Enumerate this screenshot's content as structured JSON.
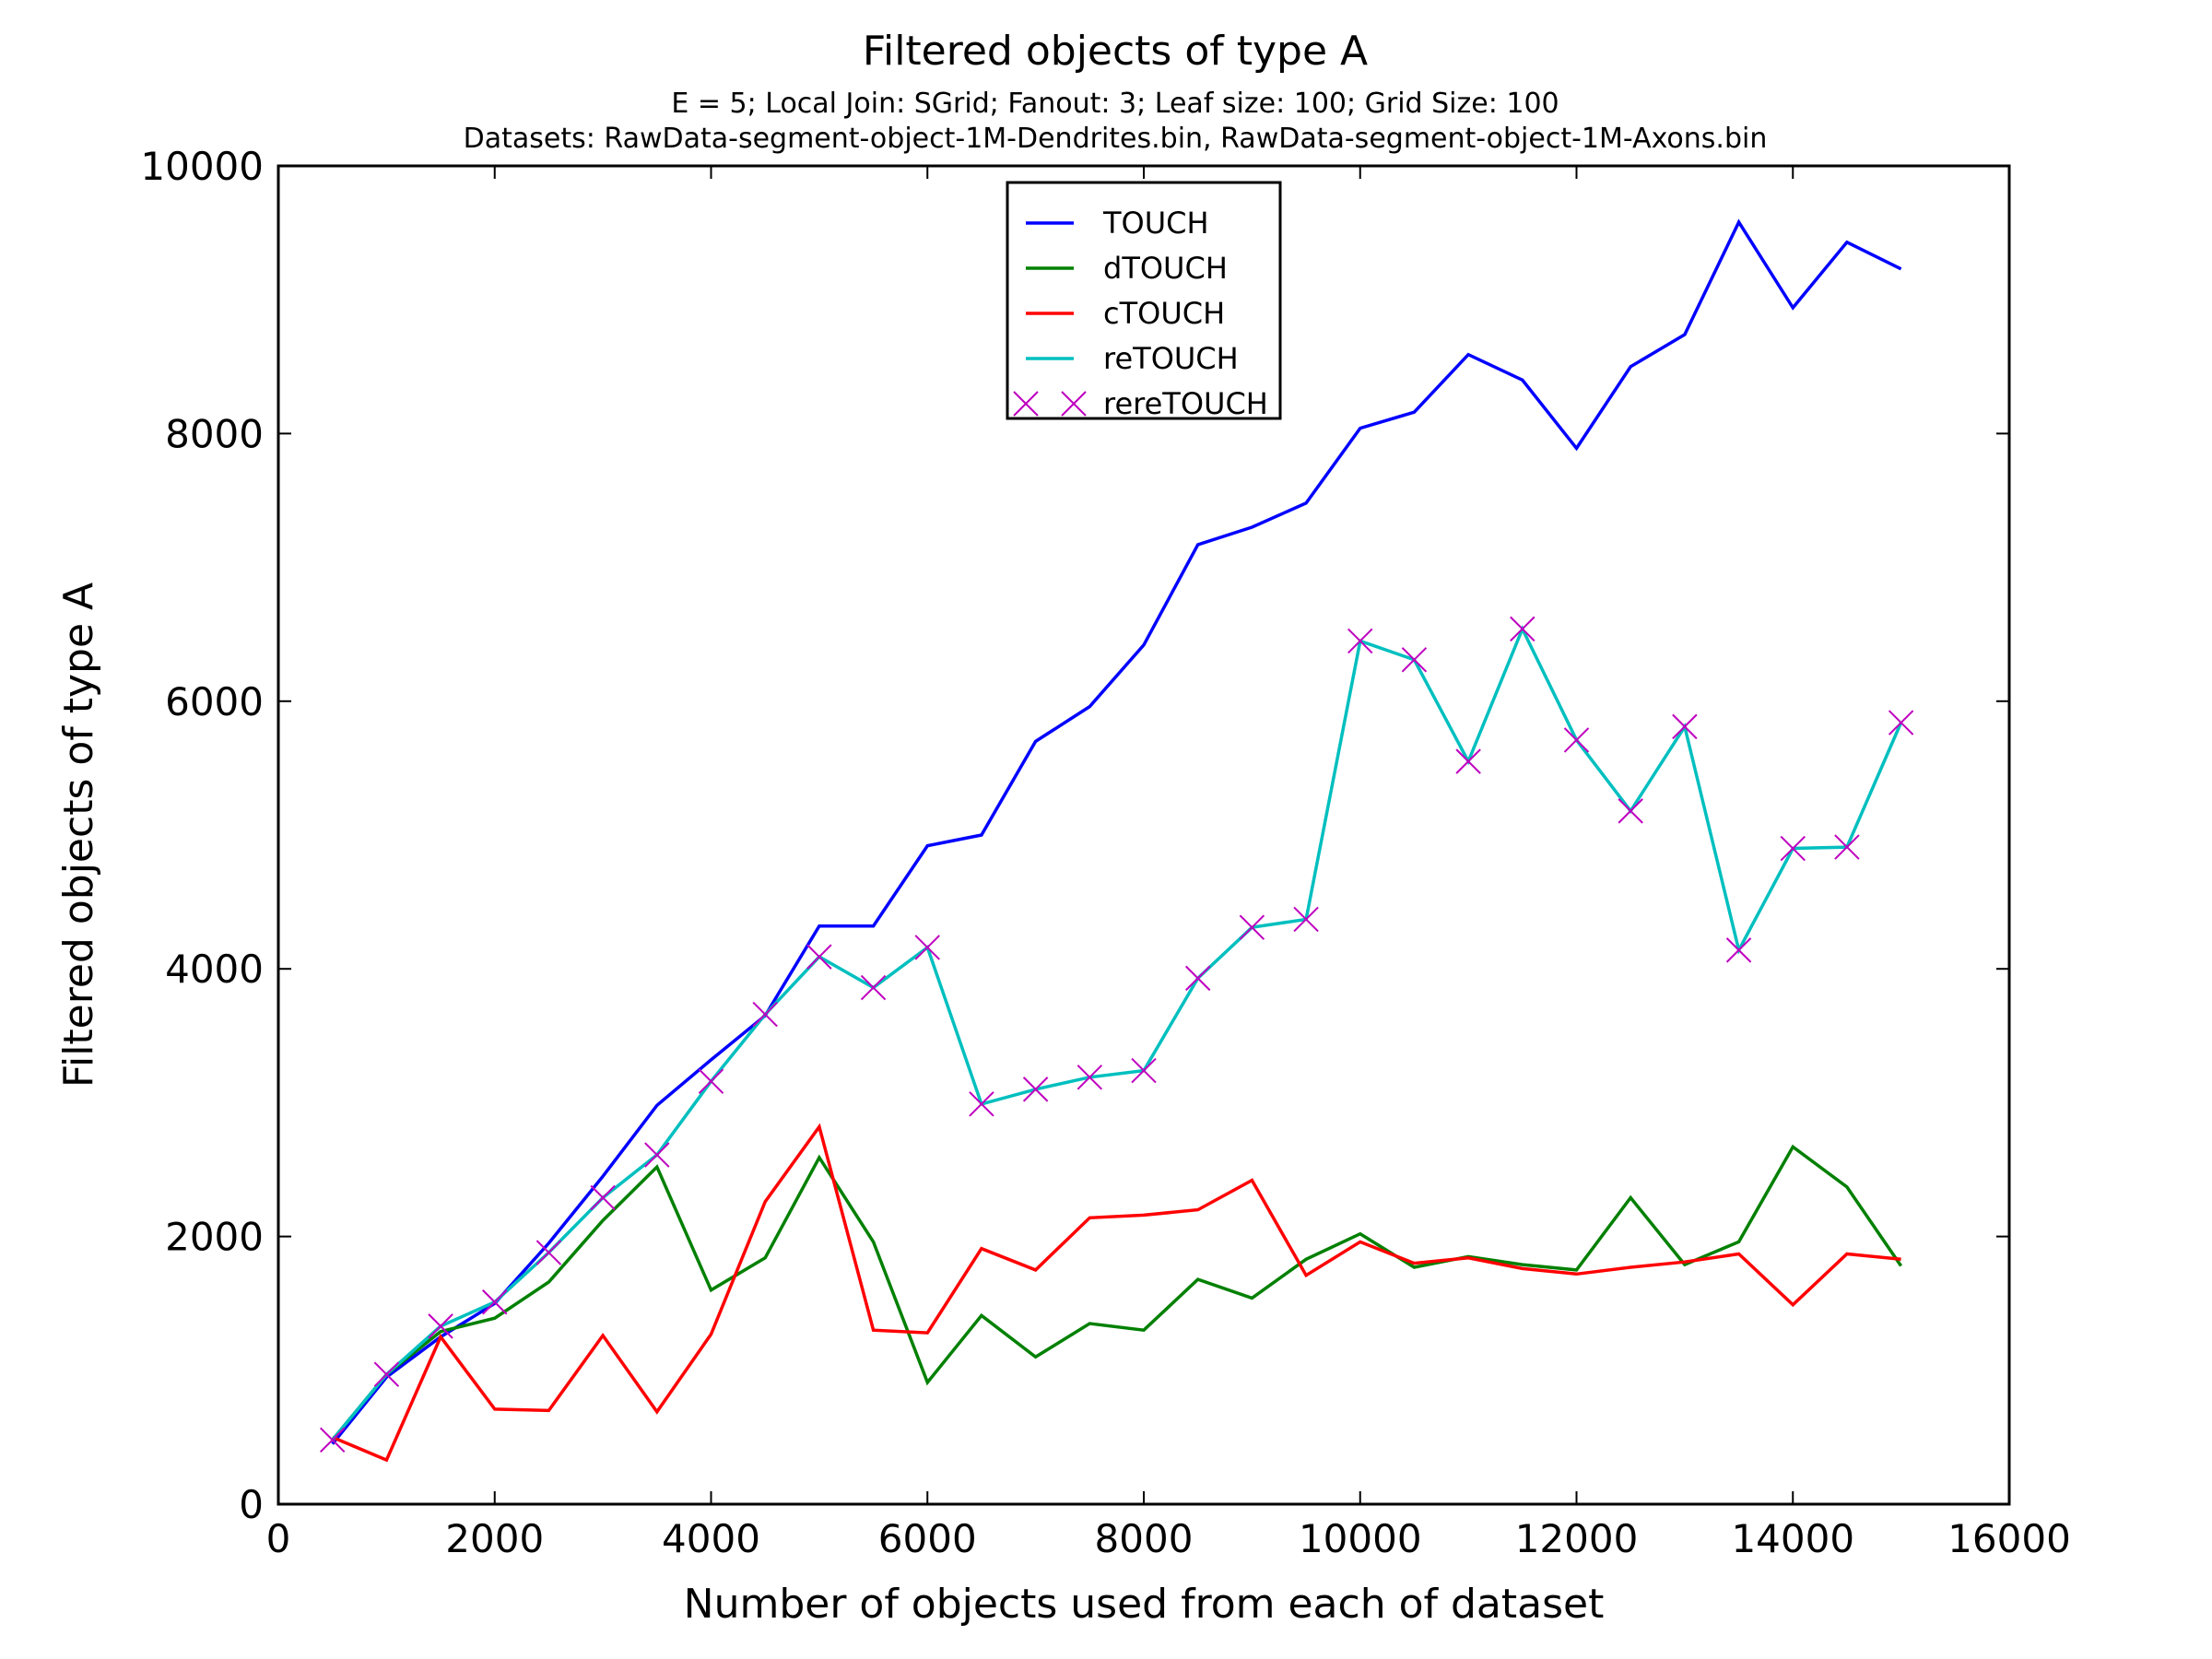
{
  "chart_data": {
    "type": "line",
    "title": "Filtered objects of type A",
    "subtitle_lines": [
      "E = 5; Local Join: SGrid; Fanout: 3; Leaf size: 100; Grid Size: 100",
      "Datasets: RawData-segment-object-1M-Dendrites.bin, RawData-segment-object-1M-Axons.bin"
    ],
    "xlabel": "Number of objects used from each of dataset",
    "ylabel": "Filtered objects of type A",
    "xlim": [
      0,
      16000
    ],
    "ylim": [
      0,
      10000
    ],
    "xticks": [
      "0",
      "2000",
      "4000",
      "6000",
      "8000",
      "10000",
      "12000",
      "14000",
      "16000"
    ],
    "yticks": [
      "0",
      "2000",
      "4000",
      "6000",
      "8000",
      "10000"
    ],
    "grid": false,
    "legend_position": "top-center",
    "x": [
      500,
      1000,
      1500,
      2000,
      2500,
      3000,
      3500,
      4000,
      4500,
      5000,
      5500,
      6000,
      6500,
      7000,
      7500,
      8000,
      8500,
      9000,
      9500,
      10000,
      10500,
      11000,
      11500,
      12000,
      12500,
      13000,
      13500,
      14000,
      14500,
      15000
    ],
    "series": [
      {
        "name": "TOUCH",
        "color": "#0000ff",
        "style": "line",
        "values": [
          450,
          950,
          1250,
          1500,
          1950,
          2450,
          2980,
          3320,
          3650,
          4320,
          4320,
          4920,
          5000,
          5700,
          5960,
          6420,
          7170,
          7300,
          7480,
          8040,
          8160,
          8590,
          8400,
          7890,
          8500,
          8740,
          9580,
          8940,
          9430,
          9230
        ]
      },
      {
        "name": "dTOUCH",
        "color": "#008000",
        "style": "line",
        "values": [
          480,
          970,
          1290,
          1390,
          1660,
          2120,
          2520,
          1600,
          1840,
          2590,
          1960,
          910,
          1410,
          1100,
          1350,
          1300,
          1680,
          1540,
          1830,
          2020,
          1770,
          1850,
          1790,
          1750,
          2290,
          1790,
          1960,
          2670,
          2370,
          1780
        ]
      },
      {
        "name": "cTOUCH",
        "color": "#ff0000",
        "style": "line",
        "values": [
          500,
          330,
          1250,
          710,
          700,
          1260,
          690,
          1270,
          2260,
          2820,
          1300,
          1280,
          1910,
          1750,
          2140,
          2160,
          2200,
          2420,
          1710,
          1960,
          1800,
          1840,
          1760,
          1720,
          1770,
          1810,
          1870,
          1490,
          1870,
          1830
        ]
      },
      {
        "name": "reTOUCH",
        "color": "#00bfbf",
        "style": "line",
        "values": [
          480,
          970,
          1330,
          1510,
          1880,
          2290,
          2610,
          3160,
          3660,
          4090,
          3860,
          4160,
          2990,
          3100,
          3190,
          3240,
          3930,
          4310,
          4370,
          6450,
          6310,
          5550,
          6540,
          5710,
          5180,
          5810,
          4140,
          4900,
          4910,
          5840
        ]
      },
      {
        "name": "rereTOUCH",
        "color": "#bf00bf",
        "style": "marker-x",
        "values": [
          480,
          970,
          1330,
          1510,
          1880,
          2290,
          2610,
          3160,
          3660,
          4090,
          3860,
          4160,
          2990,
          3100,
          3190,
          3240,
          3930,
          4310,
          4370,
          6450,
          6310,
          5550,
          6540,
          5710,
          5180,
          5810,
          4140,
          4900,
          4910,
          5840
        ]
      }
    ]
  }
}
